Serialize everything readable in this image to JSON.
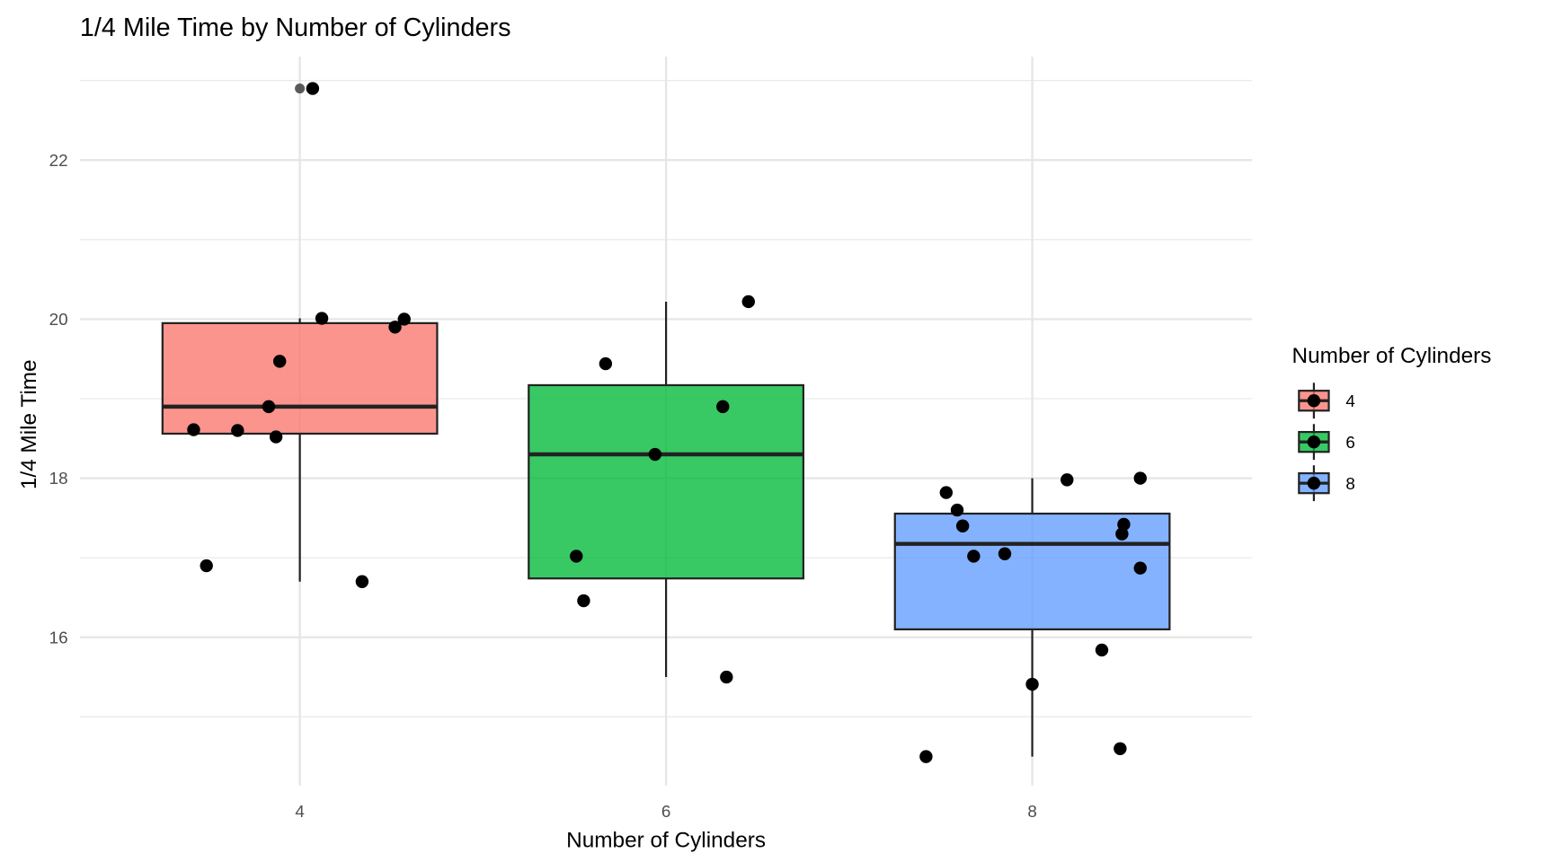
{
  "chart_data": {
    "type": "boxplot",
    "title": "1/4 Mile Time by Number of Cylinders",
    "xlabel": "Number of Cylinders",
    "ylabel": "1/4 Mile Time",
    "xlim": [
      2.8,
      9.2
    ],
    "ylim": [
      14.0,
      23.3
    ],
    "x_ticks": [
      4,
      6,
      8
    ],
    "x_tick_labels": [
      "4",
      "6",
      "8"
    ],
    "y_ticks": [
      16,
      18,
      20,
      22
    ],
    "y_tick_labels": [
      "16",
      "18",
      "20",
      "22"
    ],
    "y_minor_ticks": [
      15,
      17,
      19,
      21,
      23
    ],
    "grid": true,
    "legend": {
      "title": "Number of Cylinders",
      "placement": "right",
      "entries": [
        "4",
        "6",
        "8"
      ]
    },
    "groups": [
      {
        "name": "4",
        "x": 4,
        "color": "#F8766D",
        "min": 16.7,
        "q1": 18.56,
        "median": 18.9,
        "q3": 19.95,
        "max": 20.01,
        "outliers": [
          22.9
        ],
        "points": [
          [
            3.42,
            18.61
          ],
          [
            4.57,
            20.0
          ],
          [
            4.07,
            22.9
          ],
          [
            3.89,
            19.47
          ],
          [
            3.87,
            18.52
          ],
          [
            4.52,
            19.9
          ],
          [
            4.12,
            20.01
          ],
          [
            3.83,
            18.9
          ],
          [
            4.34,
            16.7
          ],
          [
            3.49,
            16.9
          ],
          [
            3.66,
            18.6
          ]
        ]
      },
      {
        "name": "6",
        "x": 6,
        "color": "#00BA38",
        "min": 15.5,
        "q1": 16.74,
        "median": 18.3,
        "q3": 19.17,
        "max": 20.22,
        "outliers": [],
        "points": [
          [
            5.55,
            16.46
          ],
          [
            5.51,
            17.02
          ],
          [
            5.67,
            19.44
          ],
          [
            6.45,
            20.22
          ],
          [
            5.94,
            18.3
          ],
          [
            6.31,
            18.9
          ],
          [
            6.33,
            15.5
          ]
        ]
      },
      {
        "name": "8",
        "x": 8,
        "color": "#619CFF",
        "min": 14.5,
        "q1": 16.1,
        "median": 17.175,
        "q3": 17.555,
        "max": 18.0,
        "outliers": [],
        "points": [
          [
            7.68,
            17.02
          ],
          [
            8.38,
            15.84
          ],
          [
            7.62,
            17.4
          ],
          [
            7.59,
            17.6
          ],
          [
            8.59,
            18.0
          ],
          [
            8.19,
            17.98
          ],
          [
            7.53,
            17.82
          ],
          [
            8.5,
            17.42
          ],
          [
            8.59,
            16.87
          ],
          [
            8.49,
            17.3
          ],
          [
            8.0,
            15.41
          ],
          [
            7.85,
            17.05
          ],
          [
            7.42,
            14.5
          ],
          [
            8.48,
            14.6
          ]
        ]
      }
    ]
  }
}
